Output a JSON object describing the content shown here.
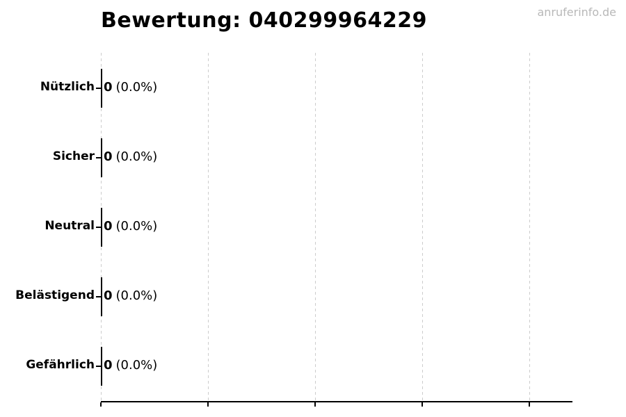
{
  "header": {
    "title": "Bewertung: 040299964229",
    "watermark": "anruferinfo.de"
  },
  "chart_data": {
    "type": "bar",
    "orientation": "horizontal",
    "title": "Bewertung: 040299964229",
    "categories": [
      "Nützlich",
      "Sicher",
      "Neutral",
      "Belästigend",
      "Gefährlich"
    ],
    "values": [
      0,
      0,
      0,
      0,
      0
    ],
    "counts": [
      "0",
      "0",
      "0",
      "0",
      "0"
    ],
    "percent_labels": [
      "(0.0%)",
      "(0.0%)",
      "(0.0%)",
      "(0.0%)",
      "(0.0%)"
    ],
    "xlabel": "",
    "ylabel": "",
    "xlim": [
      0,
      4.4
    ],
    "x_gridline_values": [
      0,
      1,
      2,
      3,
      4
    ],
    "x_tick_labels_visible": false,
    "grid": "dashed-vertical",
    "legend": false,
    "bar_color": "#000000"
  },
  "colors": {
    "background": "#ffffff",
    "text": "#000000",
    "grid": "#cccccc",
    "axis": "#000000",
    "watermark": "#b8b8b8"
  }
}
